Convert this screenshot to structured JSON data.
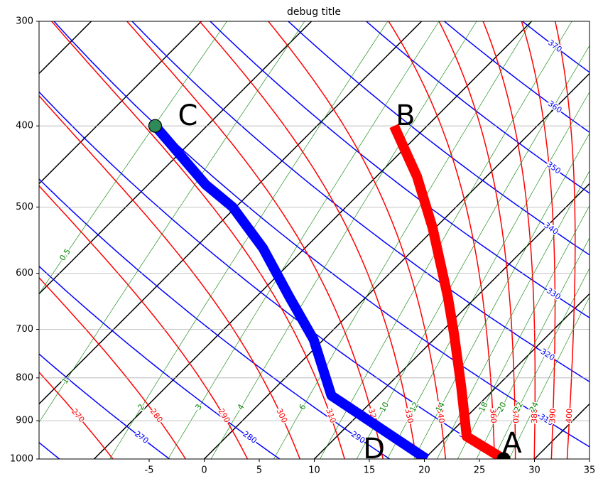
{
  "chart_data": {
    "type": "skewt",
    "title": "debug title",
    "xlim": [
      -15,
      35
    ],
    "ylim": [
      1000,
      300
    ],
    "yscale": "log",
    "xticks": [
      -5,
      0,
      5,
      10,
      15,
      20,
      25,
      30,
      35
    ],
    "yticks": [
      1000,
      900,
      800,
      700,
      600,
      500,
      400,
      300
    ],
    "grid": true,
    "series": [
      {
        "color": "#ff0000",
        "x": [
          27.2,
          21.8,
          16.8,
          11.4,
          7.4,
          -0.2,
          -6.3,
          -13.0
        ],
        "y": [
          1000,
          940,
          820,
          710,
          640,
          530,
          460,
          400
        ],
        "labels": [
          "A",
          "B"
        ],
        "marker": {
          "index": 0,
          "color": "#000000"
        }
      },
      {
        "color": "#0000ff",
        "x": [
          20.2,
          5.8,
          -0.9,
          -7.0,
          -13.8,
          -20.3,
          -24.8,
          -34.7
        ],
        "y": [
          1000,
          840,
          720,
          640,
          560,
          500,
          470,
          400
        ],
        "labels": [
          "D",
          "C"
        ],
        "marker": {
          "index": 7,
          "color": "#2e8b57"
        }
      }
    ],
    "isotherms": {
      "color": "#000000",
      "values": [
        -50,
        -40,
        -30,
        -20,
        -10,
        0,
        10,
        20,
        30
      ]
    },
    "dry_adiabats": {
      "color": "#0000ff",
      "values": [
        260,
        270,
        280,
        290,
        300,
        310,
        320,
        330,
        340,
        350,
        360,
        370
      ]
    },
    "moist_adiabats": {
      "color": "#ff0000",
      "values": [
        270,
        280,
        290,
        300,
        310,
        320,
        330,
        340,
        360,
        370,
        380,
        390,
        400
      ]
    },
    "mixing_ratios": {
      "color": "#008000",
      "values": [
        0.5,
        1,
        2,
        3,
        4,
        6,
        8,
        10,
        12,
        14,
        16,
        18,
        20,
        22,
        24
      ]
    }
  }
}
